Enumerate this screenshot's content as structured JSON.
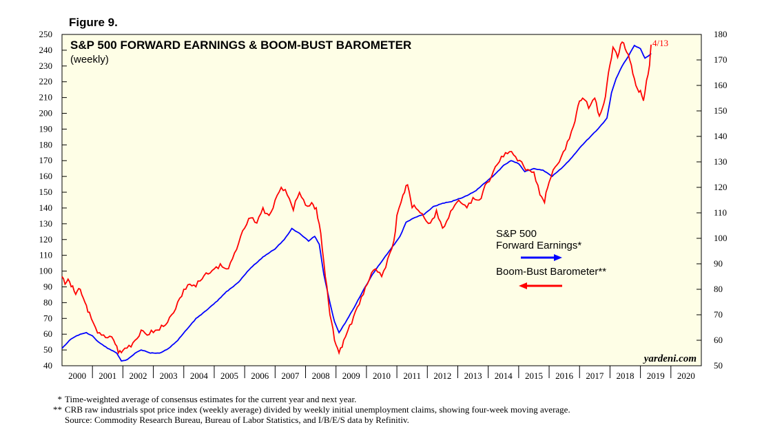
{
  "figure_label": "Figure 9.",
  "chart_data": {
    "type": "line",
    "title": "S&P 500 FORWARD EARNINGS & BOOM-BUST BAROMETER",
    "subtitle": "(weekly)",
    "x_labels": [
      "2000",
      "2001",
      "2002",
      "2003",
      "2004",
      "2005",
      "2006",
      "2007",
      "2008",
      "2009",
      "2010",
      "2011",
      "2012",
      "2013",
      "2014",
      "2015",
      "2016",
      "2017",
      "2018",
      "2019",
      "2020"
    ],
    "x_range": [
      2000.0,
      2021.0
    ],
    "left_axis": {
      "range": [
        40,
        250
      ],
      "ticks": [
        40,
        50,
        60,
        70,
        80,
        90,
        100,
        110,
        120,
        130,
        140,
        150,
        160,
        170,
        180,
        190,
        200,
        210,
        220,
        230,
        240,
        250
      ]
    },
    "right_axis": {
      "range": [
        50,
        180
      ],
      "ticks": [
        50,
        60,
        70,
        80,
        90,
        100,
        110,
        120,
        130,
        140,
        150,
        160,
        170,
        180
      ]
    },
    "end_annotation": "4/13",
    "brand": "yardeni.com",
    "series": [
      {
        "name": "S&P 500 Forward Earnings*",
        "legend_line1": "S&P 500",
        "legend_line2": "Forward Earnings*",
        "axis": "left",
        "color": "#0000ff",
        "arrow": "right",
        "points": [
          [
            2000.0,
            51
          ],
          [
            2000.3,
            57
          ],
          [
            2000.6,
            60
          ],
          [
            2000.8,
            61
          ],
          [
            2001.0,
            59
          ],
          [
            2001.2,
            55
          ],
          [
            2001.5,
            51
          ],
          [
            2001.8,
            48
          ],
          [
            2001.95,
            43
          ],
          [
            2002.15,
            44
          ],
          [
            2002.4,
            48
          ],
          [
            2002.6,
            50
          ],
          [
            2002.9,
            48
          ],
          [
            2003.2,
            48
          ],
          [
            2003.5,
            51
          ],
          [
            2003.8,
            56
          ],
          [
            2004.1,
            63
          ],
          [
            2004.4,
            70
          ],
          [
            2004.8,
            76
          ],
          [
            2005.1,
            81
          ],
          [
            2005.4,
            87
          ],
          [
            2005.8,
            93
          ],
          [
            2006.2,
            102
          ],
          [
            2006.6,
            109
          ],
          [
            2007.0,
            114
          ],
          [
            2007.3,
            120
          ],
          [
            2007.55,
            127
          ],
          [
            2007.8,
            124
          ],
          [
            2008.1,
            119
          ],
          [
            2008.3,
            122
          ],
          [
            2008.45,
            117
          ],
          [
            2008.6,
            98
          ],
          [
            2008.8,
            80
          ],
          [
            2008.95,
            68
          ],
          [
            2009.1,
            61
          ],
          [
            2009.3,
            67
          ],
          [
            2009.6,
            77
          ],
          [
            2009.9,
            88
          ],
          [
            2010.2,
            98
          ],
          [
            2010.5,
            106
          ],
          [
            2010.8,
            114
          ],
          [
            2011.1,
            122
          ],
          [
            2011.3,
            131
          ],
          [
            2011.6,
            134
          ],
          [
            2011.9,
            136
          ],
          [
            2012.2,
            141
          ],
          [
            2012.5,
            143
          ],
          [
            2012.8,
            144
          ],
          [
            2013.2,
            147
          ],
          [
            2013.6,
            151
          ],
          [
            2013.9,
            156
          ],
          [
            2014.2,
            161
          ],
          [
            2014.5,
            167
          ],
          [
            2014.75,
            170
          ],
          [
            2015.0,
            168
          ],
          [
            2015.2,
            163
          ],
          [
            2015.5,
            165
          ],
          [
            2015.8,
            164
          ],
          [
            2016.1,
            160
          ],
          [
            2016.4,
            165
          ],
          [
            2016.7,
            171
          ],
          [
            2017.0,
            178
          ],
          [
            2017.3,
            184
          ],
          [
            2017.6,
            190
          ],
          [
            2017.9,
            197
          ],
          [
            2018.05,
            213
          ],
          [
            2018.2,
            222
          ],
          [
            2018.4,
            230
          ],
          [
            2018.6,
            236
          ],
          [
            2018.8,
            243
          ],
          [
            2019.0,
            241
          ],
          [
            2019.15,
            235
          ],
          [
            2019.3,
            237
          ],
          [
            2019.35,
            238
          ]
        ]
      },
      {
        "name": "Boom-Bust Barometer**",
        "legend_line1": "Boom-Bust Barometer**",
        "axis": "right",
        "color": "#ff0000",
        "arrow": "left",
        "points": [
          [
            2000.0,
            85
          ],
          [
            2000.1,
            82
          ],
          [
            2000.2,
            84
          ],
          [
            2000.3,
            81
          ],
          [
            2000.45,
            78
          ],
          [
            2000.6,
            80
          ],
          [
            2000.75,
            75
          ],
          [
            2000.9,
            71
          ],
          [
            2001.1,
            65
          ],
          [
            2001.3,
            62
          ],
          [
            2001.5,
            61
          ],
          [
            2001.7,
            60
          ],
          [
            2001.85,
            55
          ],
          [
            2002.0,
            56
          ],
          [
            2002.2,
            58
          ],
          [
            2002.4,
            60
          ],
          [
            2002.6,
            64
          ],
          [
            2002.8,
            62
          ],
          [
            2003.0,
            63
          ],
          [
            2003.2,
            64
          ],
          [
            2003.4,
            66
          ],
          [
            2003.6,
            70
          ],
          [
            2003.8,
            75
          ],
          [
            2004.0,
            80
          ],
          [
            2004.2,
            82
          ],
          [
            2004.4,
            81
          ],
          [
            2004.6,
            84
          ],
          [
            2004.8,
            86
          ],
          [
            2005.0,
            88
          ],
          [
            2005.2,
            90
          ],
          [
            2005.4,
            88
          ],
          [
            2005.6,
            92
          ],
          [
            2005.8,
            98
          ],
          [
            2006.0,
            104
          ],
          [
            2006.2,
            108
          ],
          [
            2006.4,
            106
          ],
          [
            2006.6,
            112
          ],
          [
            2006.8,
            109
          ],
          [
            2007.0,
            115
          ],
          [
            2007.2,
            120
          ],
          [
            2007.4,
            117
          ],
          [
            2007.6,
            111
          ],
          [
            2007.8,
            118
          ],
          [
            2008.0,
            113
          ],
          [
            2008.2,
            114
          ],
          [
            2008.35,
            112
          ],
          [
            2008.5,
            102
          ],
          [
            2008.65,
            85
          ],
          [
            2008.8,
            70
          ],
          [
            2008.95,
            60
          ],
          [
            2009.1,
            55
          ],
          [
            2009.25,
            60
          ],
          [
            2009.45,
            66
          ],
          [
            2009.7,
            73
          ],
          [
            2009.9,
            78
          ],
          [
            2010.1,
            84
          ],
          [
            2010.3,
            88
          ],
          [
            2010.5,
            85
          ],
          [
            2010.7,
            92
          ],
          [
            2010.9,
            99
          ],
          [
            2011.0,
            109
          ],
          [
            2011.2,
            117
          ],
          [
            2011.35,
            121
          ],
          [
            2011.5,
            112
          ],
          [
            2011.7,
            111
          ],
          [
            2011.9,
            108
          ],
          [
            2012.1,
            106
          ],
          [
            2012.3,
            111
          ],
          [
            2012.5,
            104
          ],
          [
            2012.7,
            108
          ],
          [
            2012.9,
            113
          ],
          [
            2013.1,
            114
          ],
          [
            2013.3,
            112
          ],
          [
            2013.5,
            116
          ],
          [
            2013.7,
            115
          ],
          [
            2013.9,
            121
          ],
          [
            2014.1,
            124
          ],
          [
            2014.3,
            129
          ],
          [
            2014.5,
            132
          ],
          [
            2014.7,
            134
          ],
          [
            2014.9,
            132
          ],
          [
            2015.1,
            130
          ],
          [
            2015.3,
            127
          ],
          [
            2015.5,
            126
          ],
          [
            2015.7,
            117
          ],
          [
            2015.85,
            114
          ],
          [
            2016.0,
            122
          ],
          [
            2016.2,
            128
          ],
          [
            2016.4,
            132
          ],
          [
            2016.6,
            138
          ],
          [
            2016.8,
            144
          ],
          [
            2016.95,
            152
          ],
          [
            2017.1,
            155
          ],
          [
            2017.3,
            151
          ],
          [
            2017.5,
            155
          ],
          [
            2017.65,
            148
          ],
          [
            2017.8,
            153
          ],
          [
            2017.95,
            165
          ],
          [
            2018.1,
            175
          ],
          [
            2018.25,
            171
          ],
          [
            2018.4,
            177
          ],
          [
            2018.55,
            173
          ],
          [
            2018.7,
            168
          ],
          [
            2018.85,
            160
          ],
          [
            2019.0,
            158
          ],
          [
            2019.1,
            154
          ],
          [
            2019.2,
            162
          ],
          [
            2019.3,
            168
          ],
          [
            2019.35,
            176
          ]
        ]
      }
    ]
  },
  "footnotes": [
    {
      "marker": "*",
      "text": "Time-weighted average of consensus estimates for the current year and next year."
    },
    {
      "marker": "**",
      "text": "CRB raw industrials spot price index (weekly average) divided by weekly initial unemployment claims, showing four-week moving average."
    },
    {
      "marker": "",
      "text": "Source: Commodity Research Bureau, Bureau of Labor Statistics, and I/B/E/S data by Refinitiv."
    }
  ]
}
